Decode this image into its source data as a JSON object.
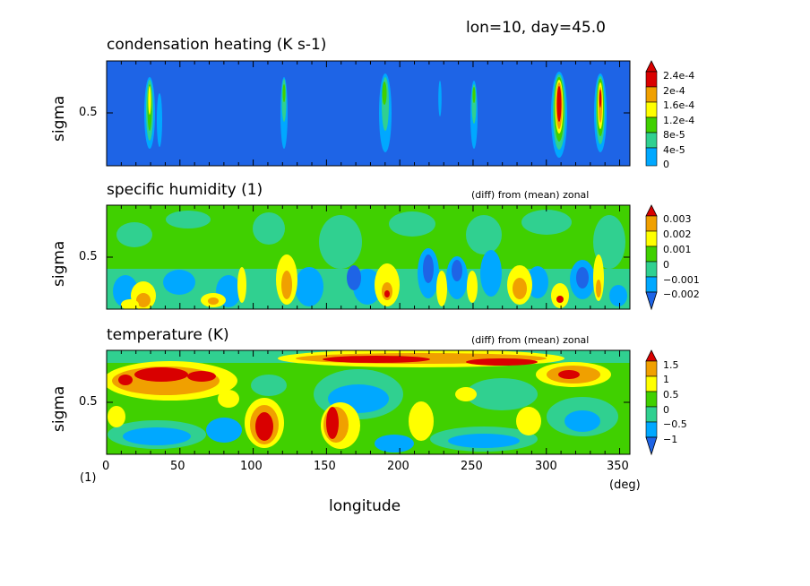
{
  "header": {
    "info": "lon=10, day=45.0"
  },
  "xaxis": {
    "label": "longitude",
    "unit": "(deg)",
    "ticks": [
      "0",
      "50",
      "100",
      "150",
      "200",
      "250",
      "300",
      "350"
    ],
    "tick_values": [
      0,
      50,
      100,
      150,
      200,
      250,
      300,
      350
    ],
    "range": [
      0,
      357
    ]
  },
  "ylabel": "sigma",
  "ytick": "0.5",
  "corner_label": "(1)",
  "panels": [
    {
      "title": "condensation heating (K s-1)",
      "note": "",
      "legend": [
        "2.4e-4",
        "2e-4",
        "1.6e-4",
        "1.2e-4",
        "8e-5",
        "4e-5",
        "0"
      ],
      "colors": [
        "#d90000",
        "#f0a000",
        "#ffff00",
        "#40d000",
        "#30d090",
        "#00a8ff",
        "#1e64e6"
      ]
    },
    {
      "title": "specific humidity (1)",
      "note": "(diff) from (mean) zonal",
      "legend": [
        "0.003",
        "0.002",
        "0.001",
        "0",
        "−0.001",
        "−0.002"
      ],
      "colors": [
        "#d90000",
        "#f0a000",
        "#ffff00",
        "#40d000",
        "#30d090",
        "#00a8ff",
        "#1e64e6"
      ]
    },
    {
      "title": "temperature (K)",
      "note": "(diff) from (mean) zonal",
      "legend": [
        "1.5",
        "1",
        "0.5",
        "0",
        "−0.5",
        "−1"
      ],
      "colors": [
        "#d90000",
        "#f0a000",
        "#ffff00",
        "#40d000",
        "#30d090",
        "#00a8ff",
        "#1e64e6"
      ]
    }
  ],
  "chart_data": [
    {
      "type": "heatmap",
      "title": "condensation heating (K s-1)",
      "xlabel": "longitude",
      "ylabel": "sigma",
      "xlim": [
        0,
        357
      ],
      "colorbar_levels": [
        0,
        4e-05,
        8e-05,
        0.00012,
        0.00016,
        0.0002,
        0.00024
      ],
      "features": [
        {
          "lon": 28,
          "peak": 0.00022
        },
        {
          "lon": 35,
          "peak": 6e-05
        },
        {
          "lon": 121,
          "peak": 0.00013
        },
        {
          "lon": 189,
          "peak": 0.00015
        },
        {
          "lon": 226,
          "peak": 4e-05
        },
        {
          "lon": 250,
          "peak": 0.00012
        },
        {
          "lon": 307,
          "peak": 0.00025
        },
        {
          "lon": 335,
          "peak": 0.00023
        }
      ]
    },
    {
      "type": "heatmap",
      "title": "specific humidity (1)",
      "xlabel": "longitude",
      "ylabel": "sigma",
      "xlim": [
        0,
        357
      ],
      "colorbar_levels": [
        -0.002,
        -0.001,
        0,
        0.001,
        0.002,
        0.003
      ]
    },
    {
      "type": "heatmap",
      "title": "temperature (K)",
      "xlabel": "longitude",
      "ylabel": "sigma",
      "xlim": [
        0,
        357
      ],
      "colorbar_levels": [
        -1,
        -0.5,
        0,
        0.5,
        1,
        1.5
      ]
    }
  ]
}
